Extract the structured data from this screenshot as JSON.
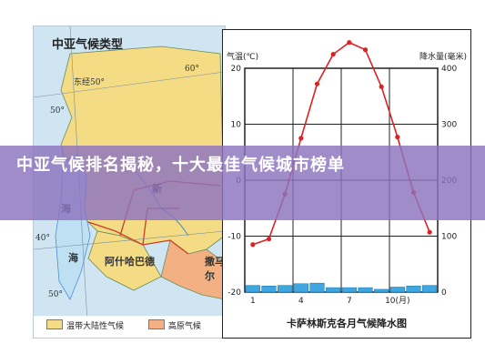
{
  "map": {
    "title": "中亚气候类型",
    "label_lon_50": "东经50°",
    "label_lat_60": "60°",
    "label_lat_50": "50°",
    "label_lat_40": "40°",
    "label_lat_50b": "50°",
    "place_sea": "海",
    "place_ashgabat": "阿什哈巴德",
    "place_samarkand": "撒马尔",
    "place_tu": "新",
    "place_hai": "海",
    "legend_1": "温带大陆性气候",
    "legend_2": "高原气候",
    "colors": {
      "land_yellow": "#f3dc84",
      "land_orange": "#f2b083",
      "sea": "#cfe6f2",
      "border_red": "#cc3b2b",
      "river_blue": "#4d8fd6"
    }
  },
  "chart_data": {
    "type": "line",
    "title": "卡萨林斯克各月气候降水图",
    "y_left_label": "气温(℃)",
    "y_right_label": "降水量(毫米)",
    "x_tick_labels": [
      "1",
      "4",
      "7",
      "10(月)"
    ],
    "y_left_ticks": [
      "20",
      "10",
      "0",
      "-10",
      "-20"
    ],
    "y_right_ticks": [
      "400",
      "300",
      "200",
      "100",
      "0"
    ],
    "months": [
      1,
      2,
      3,
      4,
      5,
      6,
      7,
      8,
      9,
      10,
      11,
      12
    ],
    "temperature": [
      -11.5,
      -10.5,
      -2.5,
      7.5,
      17.2,
      22.5,
      24.6,
      23.3,
      16.7,
      7.7,
      -2.2,
      -9.3
    ],
    "precipitation": [
      12,
      11,
      12,
      15,
      16,
      8,
      8,
      8,
      5,
      9,
      11,
      12
    ],
    "ylim_temp": [
      -20,
      20
    ],
    "ylim_precip": [
      0,
      400
    ],
    "colors": {
      "temp_line": "#dd2222",
      "precip_bar": "#3fa7e0",
      "grid": "#222222"
    }
  },
  "banner": {
    "text": "中亚气候排名揭秘，十大最佳气候城市榜单"
  }
}
